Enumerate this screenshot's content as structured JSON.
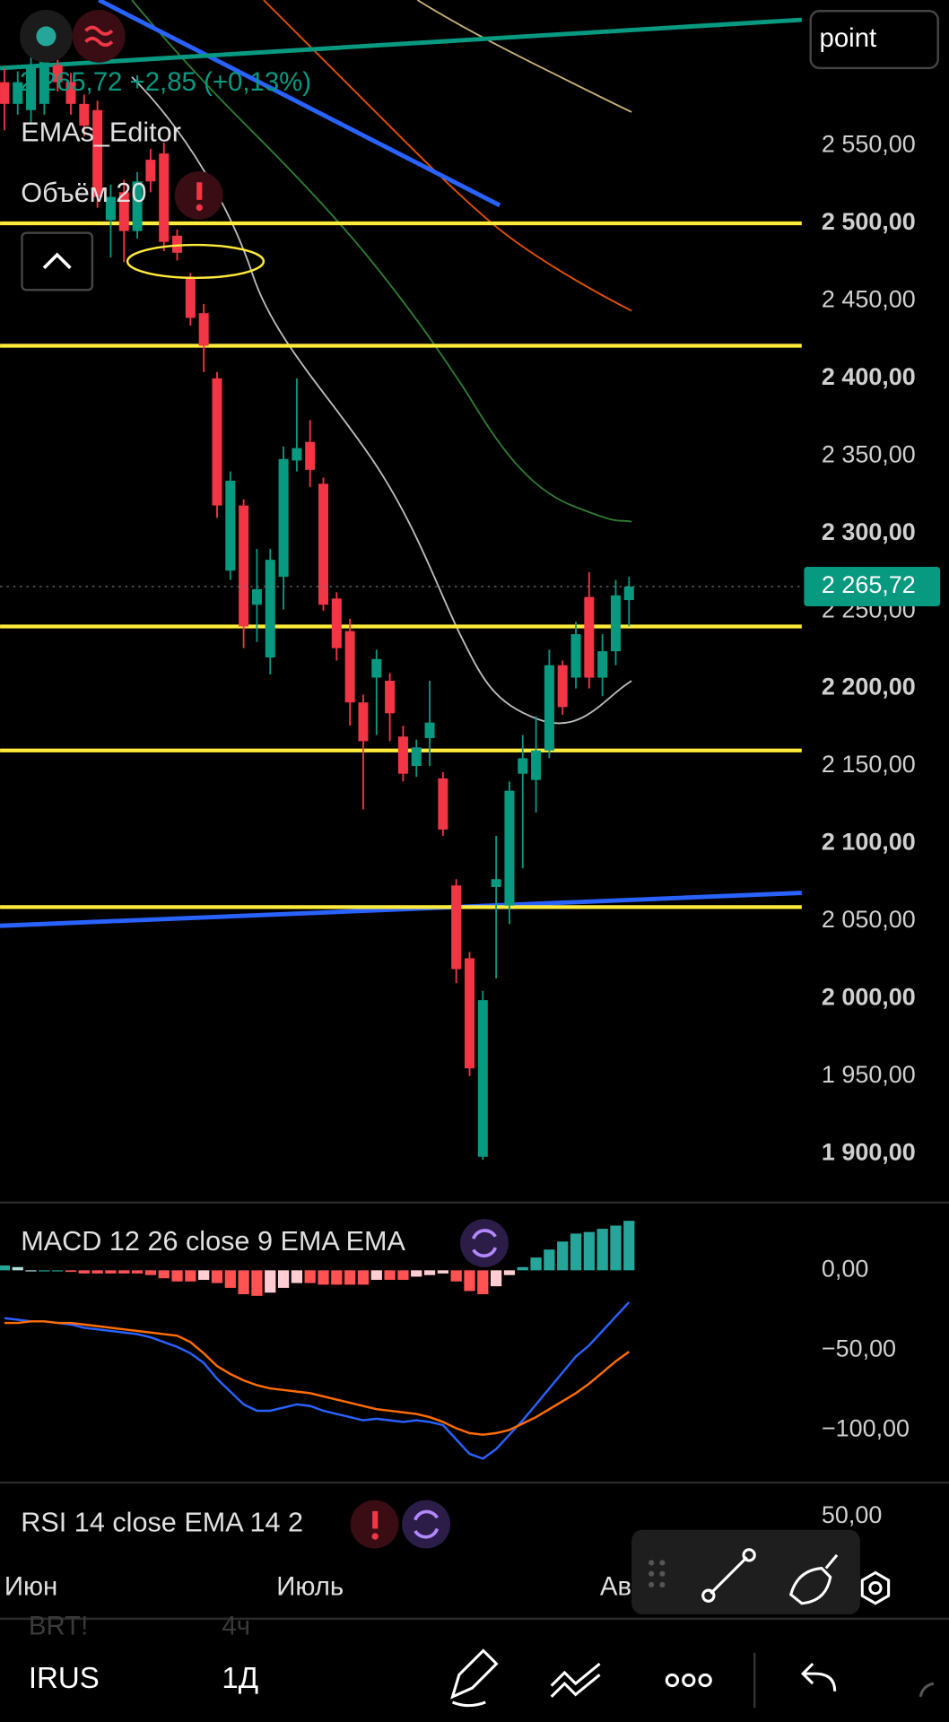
{
  "header": {
    "price_change": "2 265,72 +2,85 (+0,13%)",
    "indicator": "EMAs_Editor",
    "volume": "Объём 20",
    "crosshair_mode": "point"
  },
  "chart_data": [
    {
      "type": "candlestick",
      "categories": [
        null,
        null,
        "Июн",
        null,
        null,
        null,
        null,
        null,
        null,
        null,
        null,
        null,
        null,
        null,
        null,
        null,
        null,
        null,
        null,
        null,
        null,
        null,
        null,
        "Июль",
        null,
        null,
        null,
        null,
        null,
        null,
        null,
        null,
        null,
        null,
        null,
        null,
        null,
        null,
        null,
        null,
        null,
        null,
        null,
        null,
        null,
        null,
        "Ав",
        null
      ],
      "open": [
        2591,
        2577,
        2573,
        2577,
        2602,
        2591,
        2577,
        2573,
        2502,
        2520,
        2495,
        2541,
        2545,
        2492,
        2465,
        2442,
        2400,
        2276,
        2318,
        2254,
        2220,
        2272,
        2347,
        2359,
        2332,
        2258,
        2237,
        2191,
        2207,
        2205,
        2169,
        2150,
        2168,
        2142,
        2073,
        2026,
        1898,
        2072,
        2060,
        2145,
        2141,
        2160,
        2215,
        2207,
        2259,
        2207,
        2224,
        2257
      ],
      "high": [
        2600,
        2598,
        2610,
        2624,
        2608,
        2597,
        2583,
        2579,
        2525,
        2528,
        2533,
        2548,
        2552,
        2496,
        2468,
        2448,
        2404,
        2340,
        2322,
        2290,
        2290,
        2356,
        2400,
        2373,
        2336,
        2262,
        2245,
        2196,
        2225,
        2210,
        2176,
        2167,
        2205,
        2146,
        2077,
        2030,
        2005,
        2105,
        2140,
        2170,
        2182,
        2225,
        2218,
        2243,
        2275,
        2235,
        2270,
        2272
      ],
      "low": [
        2560,
        2570,
        2565,
        2570,
        2585,
        2570,
        2556,
        2510,
        2478,
        2475,
        2490,
        2520,
        2482,
        2476,
        2434,
        2404,
        2310,
        2270,
        2226,
        2230,
        2209,
        2251,
        2340,
        2330,
        2250,
        2218,
        2176,
        2122,
        2170,
        2166,
        2140,
        2143,
        2150,
        2105,
        2010,
        1950,
        1896,
        2013,
        2048,
        2084,
        2120,
        2155,
        2183,
        2200,
        2200,
        2195,
        2215,
        2240
      ],
      "close": [
        2577,
        2591,
        2602,
        2616,
        2591,
        2577,
        2563,
        2517,
        2517,
        2495,
        2527,
        2527,
        2488,
        2481,
        2439,
        2421,
        2318,
        2334,
        2240,
        2264,
        2283,
        2348,
        2355,
        2341,
        2254,
        2226,
        2191,
        2166,
        2219,
        2184,
        2145,
        2162,
        2178,
        2109,
        2019,
        1955,
        1999,
        2077,
        2134,
        2155,
        2160,
        2215,
        2188,
        2235,
        2207,
        2224,
        2260,
        2265.72
      ],
      "up_color": "#089981",
      "down_color": "#f23645",
      "ylim": [
        1872,
        2644
      ],
      "yticks": [
        {
          "value": 1900,
          "label": "1 900,00"
        },
        {
          "value": 1950,
          "label": "1 950,00"
        },
        {
          "value": 2000,
          "label": "2 000,00"
        },
        {
          "value": 2050,
          "label": "2 050,00"
        },
        {
          "value": 2100,
          "label": "2 100,00"
        },
        {
          "value": 2150,
          "label": "2 150,00"
        },
        {
          "value": 2200,
          "label": "2 200,00"
        },
        {
          "value": 2250,
          "label": "2 250,00"
        },
        {
          "value": 2300,
          "label": "2 300,00"
        },
        {
          "value": 2350,
          "label": "2 350,00"
        },
        {
          "value": 2400,
          "label": "2 400,00"
        },
        {
          "value": 2450,
          "label": "2 450,00"
        },
        {
          "value": 2500,
          "label": "2 500,00"
        },
        {
          "value": 2550,
          "label": "2 550,00"
        }
      ],
      "levels": [
        2500,
        2421,
        2240,
        2160,
        2059
      ],
      "level_color": "#ffeb3b",
      "last_price": {
        "value": 2265.72,
        "label": "2 265,72"
      }
    },
    {
      "type": "macd",
      "title": "MACD 12 26 close 9 EMA EMA",
      "macd": [
        -30,
        -31,
        -32,
        -32,
        -33,
        -34,
        -36,
        -37,
        -38,
        -39,
        -40,
        -42,
        -45,
        -48,
        -52,
        -58,
        -68,
        -76,
        -84,
        -88,
        -88,
        -86,
        -84,
        -85,
        -88,
        -90,
        -92,
        -94,
        -93,
        -94,
        -95,
        -94,
        -95,
        -97,
        -106,
        -115,
        -118,
        -112,
        -103,
        -94,
        -84,
        -74,
        -64,
        -54,
        -47,
        -38,
        -29,
        -20
      ],
      "signal": [
        -33,
        -33,
        -32,
        -32,
        -33,
        -33,
        -34,
        -35,
        -36,
        -37,
        -38,
        -39,
        -40,
        -41,
        -45,
        -52,
        -60,
        -65,
        -69,
        -72,
        -74,
        -75,
        -76,
        -77,
        -79,
        -81,
        -83,
        -85,
        -87,
        -88,
        -89,
        -90,
        -92,
        -95,
        -99,
        -102,
        -103,
        -102,
        -100,
        -96,
        -92,
        -87,
        -82,
        -77,
        -71,
        -64,
        -57,
        -51
      ],
      "histogram": [
        3,
        2,
        0,
        0,
        0,
        -1,
        -2,
        -2,
        -2,
        -2,
        -2,
        -3,
        -5,
        -7,
        -7,
        -6,
        -8,
        -11,
        -15,
        -16,
        -14,
        -11,
        -8,
        -8,
        -9,
        -9,
        -9,
        -9,
        -6,
        -6,
        -6,
        -4,
        -3,
        -2,
        -7,
        -13,
        -15,
        -10,
        -3,
        2,
        8,
        13,
        18,
        23,
        24,
        26,
        28,
        31
      ],
      "macd_color": "#2962ff",
      "signal_color": "#ff6d00",
      "hist_colors": {
        "up_rising": "#26a69a",
        "up_falling": "#b2dfdb",
        "down_falling": "#ff5252",
        "down_rising": "#ffcdd2"
      },
      "ylim": [
        -133,
        39
      ],
      "yticks": [
        {
          "value": 0,
          "label": "0,00"
        },
        {
          "value": -50,
          "label": "−50,00"
        },
        {
          "value": -100,
          "label": "−100,00"
        }
      ]
    },
    {
      "type": "rsi",
      "title": "RSI 14 close EMA 14 2",
      "ylim": [
        0,
        100
      ],
      "yticks": [
        {
          "value": 50,
          "label": "50,00"
        }
      ]
    }
  ],
  "toolbar": {
    "prev_symbol": "BRT!",
    "prev_interval": "4ч",
    "symbol": "IRUS",
    "interval": "1Д"
  }
}
